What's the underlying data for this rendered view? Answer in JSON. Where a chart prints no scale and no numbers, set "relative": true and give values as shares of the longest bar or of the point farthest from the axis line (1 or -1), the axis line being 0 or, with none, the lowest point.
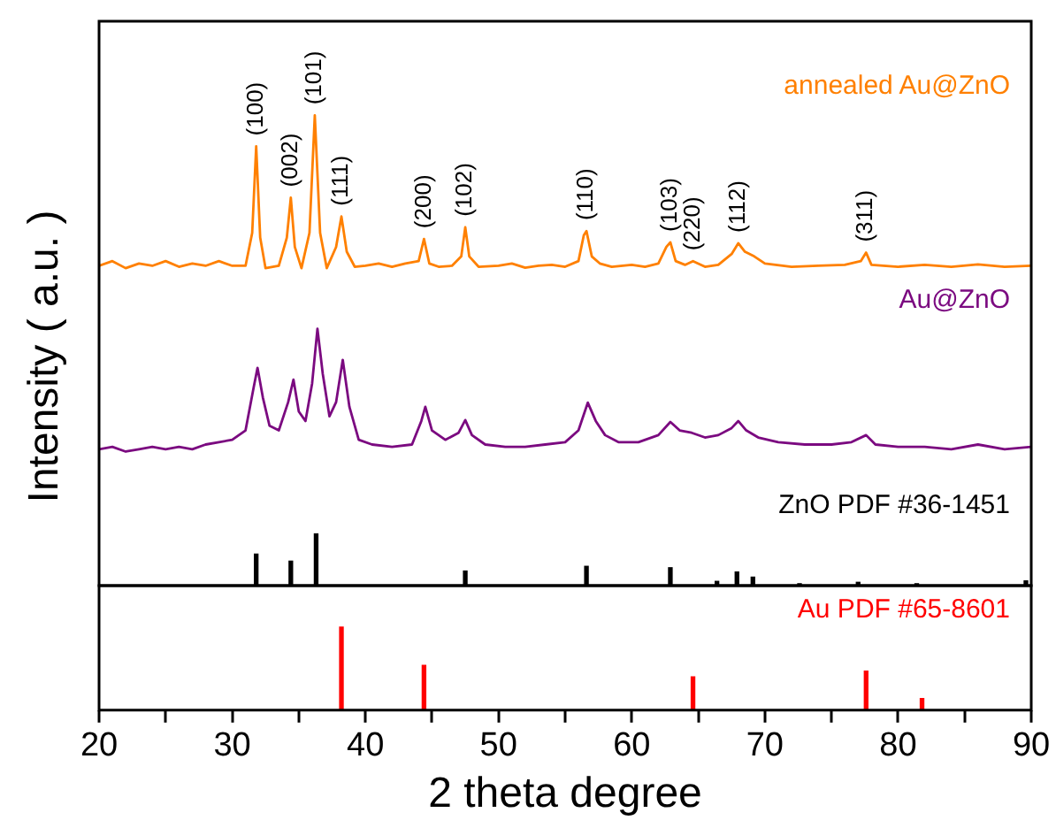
{
  "chart_data": [
    {
      "type": "line",
      "relative": true,
      "ylabel": "Intensity ( a.u. )",
      "xlim": [
        20,
        90
      ],
      "tick_labels": false,
      "grid": false,
      "legend": false,
      "marker": "none",
      "series": [
        {
          "name": "annealed Au@ZnO",
          "color": "#ff8000",
          "x": [
            20,
            21,
            22,
            23,
            24,
            25,
            26,
            27,
            28,
            29,
            30,
            31,
            31.5,
            31.8,
            32.1,
            32.5,
            33.5,
            34.1,
            34.4,
            34.7,
            35.2,
            35.8,
            36.2,
            36.6,
            37.1,
            37.8,
            38.2,
            38.6,
            39.2,
            40,
            41,
            42,
            43,
            44,
            44.4,
            44.8,
            45.5,
            46.5,
            47.2,
            47.5,
            47.8,
            48.5,
            50,
            51,
            52,
            53,
            54,
            55,
            56,
            56.4,
            56.6,
            57,
            57.6,
            58.5,
            60,
            61,
            62,
            62.6,
            62.9,
            63.3,
            64,
            64.6,
            65.5,
            66.5,
            67.5,
            68,
            68.5,
            69.2,
            70,
            72,
            74,
            76,
            77.2,
            77.6,
            78,
            80,
            82,
            84,
            86,
            88,
            90
          ],
          "values": [
            0.68,
            0.69,
            0.675,
            0.685,
            0.68,
            0.69,
            0.678,
            0.685,
            0.68,
            0.69,
            0.68,
            0.68,
            0.75,
            0.934,
            0.74,
            0.675,
            0.68,
            0.74,
            0.825,
            0.72,
            0.675,
            0.75,
            1.0,
            0.75,
            0.675,
            0.72,
            0.785,
            0.71,
            0.678,
            0.68,
            0.685,
            0.678,
            0.685,
            0.69,
            0.737,
            0.685,
            0.678,
            0.68,
            0.7,
            0.762,
            0.7,
            0.678,
            0.68,
            0.685,
            0.676,
            0.68,
            0.682,
            0.678,
            0.69,
            0.745,
            0.754,
            0.7,
            0.685,
            0.678,
            0.682,
            0.678,
            0.685,
            0.72,
            0.73,
            0.69,
            0.682,
            0.69,
            0.678,
            0.682,
            0.705,
            0.728,
            0.71,
            0.7,
            0.685,
            0.678,
            0.68,
            0.682,
            0.69,
            0.708,
            0.682,
            0.678,
            0.682,
            0.678,
            0.683,
            0.678,
            0.68
          ]
        },
        {
          "name": "Au@ZnO",
          "color": "#7b0a80",
          "x": [
            20,
            21,
            22,
            23,
            24,
            25,
            26,
            27,
            28,
            29,
            30,
            31,
            31.6,
            31.9,
            32.3,
            32.8,
            33.5,
            34.2,
            34.6,
            35,
            35.5,
            36,
            36.4,
            36.8,
            37.3,
            37.8,
            38.3,
            38.8,
            39.5,
            40.5,
            42,
            43.5,
            44.2,
            44.5,
            45,
            46,
            47,
            47.5,
            48,
            49,
            50.5,
            52,
            53.5,
            55,
            56,
            56.7,
            57.3,
            58,
            59,
            60.5,
            62,
            62.9,
            63.6,
            64.5,
            65.5,
            66.5,
            67.5,
            68,
            68.6,
            69.5,
            71,
            73,
            75,
            76.5,
            77.6,
            78.3,
            80,
            82,
            84,
            86,
            88,
            90
          ],
          "values": [
            0.29,
            0.295,
            0.285,
            0.29,
            0.295,
            0.29,
            0.295,
            0.29,
            0.3,
            0.305,
            0.31,
            0.33,
            0.42,
            0.463,
            0.4,
            0.34,
            0.33,
            0.39,
            0.438,
            0.37,
            0.35,
            0.43,
            0.546,
            0.45,
            0.36,
            0.39,
            0.48,
            0.38,
            0.31,
            0.3,
            0.295,
            0.3,
            0.35,
            0.38,
            0.33,
            0.31,
            0.325,
            0.352,
            0.32,
            0.3,
            0.295,
            0.295,
            0.3,
            0.305,
            0.33,
            0.389,
            0.35,
            0.32,
            0.305,
            0.305,
            0.32,
            0.348,
            0.33,
            0.325,
            0.315,
            0.32,
            0.335,
            0.35,
            0.33,
            0.315,
            0.305,
            0.3,
            0.3,
            0.305,
            0.32,
            0.3,
            0.295,
            0.295,
            0.29,
            0.3,
            0.29,
            0.295
          ]
        },
        {
          "name": "ZnO PDF #36-1451",
          "type": "bar",
          "color": "#000000",
          "x": [
            31.8,
            34.4,
            36.3,
            47.5,
            56.6,
            62.9,
            66.4,
            67.9,
            69.1,
            72.6,
            77.0,
            81.4,
            89.6
          ],
          "values": [
            0.067,
            0.052,
            0.11,
            0.031,
            0.041,
            0.038,
            0.009,
            0.029,
            0.018,
            0.004,
            0.007,
            0.004,
            0.01
          ]
        }
      ],
      "annotations": [
        {
          "text": "(100)",
          "x": 31.8,
          "y": 0.934
        },
        {
          "text": "(002)",
          "x": 34.4,
          "y": 0.825
        },
        {
          "text": "(101)",
          "x": 36.2,
          "y": 1.0
        },
        {
          "text": "(111)",
          "x": 38.2,
          "y": 0.785
        },
        {
          "text": "(200)",
          "x": 44.4,
          "y": 0.737
        },
        {
          "text": "(102)",
          "x": 47.5,
          "y": 0.762
        },
        {
          "text": "(110)",
          "x": 56.6,
          "y": 0.754
        },
        {
          "text": "(103)",
          "x": 62.9,
          "y": 0.73
        },
        {
          "text": "(220)",
          "x": 64.6,
          "y": 0.69
        },
        {
          "text": "(112)",
          "x": 68,
          "y": 0.728
        },
        {
          "text": "(311)",
          "x": 77.6,
          "y": 0.708
        }
      ]
    },
    {
      "type": "bar",
      "relative": true,
      "xlabel": "2 theta degree",
      "xlim": [
        20,
        90
      ],
      "tick_labels": "x",
      "grid": false,
      "legend": false,
      "xticks": [
        20,
        {
          "value": 25,
          "label": null
        },
        30,
        {
          "value": 35,
          "label": null
        },
        40,
        {
          "value": 45,
          "label": null
        },
        50,
        {
          "value": 55,
          "label": null
        },
        60,
        {
          "value": 65,
          "label": null
        },
        70,
        {
          "value": 75,
          "label": null
        },
        80,
        {
          "value": 85,
          "label": null
        },
        90
      ],
      "series": [
        {
          "name": "Au PDF #65-8601",
          "color": "#ff0000",
          "x": [
            38.2,
            44.4,
            64.6,
            77.6,
            81.8
          ],
          "values": [
            1,
            0.54,
            0.4,
            0.47,
            0.14
          ]
        }
      ]
    }
  ]
}
